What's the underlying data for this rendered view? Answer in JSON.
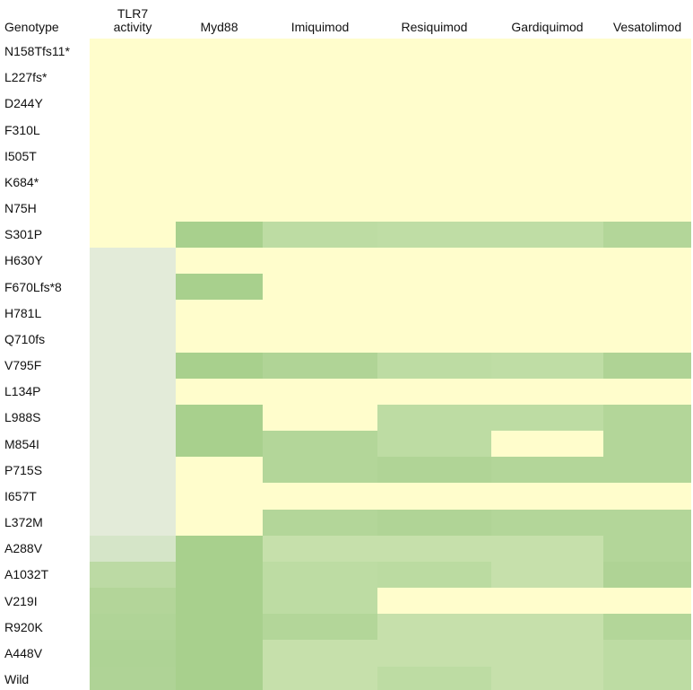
{
  "table": {
    "header": [
      "Genotype",
      "TLR7 activity",
      "Myd88",
      "Imiquimod",
      "Resiquimod",
      "Gardiquimod",
      "Vesatolimod"
    ],
    "rows": [
      {
        "label": "N158Tfs11*",
        "colors": [
          "#fffdcc",
          "#fffdcc",
          "#fffdcc",
          "#fffdcc",
          "#fffdcc",
          "#fffdcc"
        ]
      },
      {
        "label": "L227fs*",
        "colors": [
          "#fffdcc",
          "#fffdcc",
          "#fffdcc",
          "#fffdcc",
          "#fffdcc",
          "#fffdcc"
        ]
      },
      {
        "label": "D244Y",
        "colors": [
          "#fffdcc",
          "#fffdcc",
          "#fffdcc",
          "#fffdcc",
          "#fffdcc",
          "#fffdcc"
        ]
      },
      {
        "label": "F310L",
        "colors": [
          "#fffdcc",
          "#fffdcc",
          "#fffdcc",
          "#fffdcc",
          "#fffdcc",
          "#fffdcc"
        ]
      },
      {
        "label": "I505T",
        "colors": [
          "#fffdcc",
          "#fffdcc",
          "#fffdcc",
          "#fffdcc",
          "#fffdcc",
          "#fffdcc"
        ]
      },
      {
        "label": "K684*",
        "colors": [
          "#fffdcc",
          "#fffdcc",
          "#fffdcc",
          "#fffdcc",
          "#fffdcc",
          "#fffdcc"
        ]
      },
      {
        "label": "N75H",
        "colors": [
          "#fffdcc",
          "#fffdcc",
          "#fffdcc",
          "#fffdcc",
          "#fffdcc",
          "#fffdcc"
        ]
      },
      {
        "label": "S301P",
        "colors": [
          "#fffdcc",
          "#a8d08d",
          "#bddca3",
          "#bfdda5",
          "#bfdda5",
          "#b3d699"
        ]
      },
      {
        "label": "H630Y",
        "colors": [
          "#e3ebd9",
          "#fffdcc",
          "#fffdcc",
          "#fffdcc",
          "#fffdcc",
          "#fffdcc"
        ]
      },
      {
        "label": "F670Lfs*8",
        "colors": [
          "#e3ebd9",
          "#a8d08d",
          "#fffdcc",
          "#fffdcc",
          "#fffdcc",
          "#fffdcc"
        ]
      },
      {
        "label": "H781L",
        "colors": [
          "#e3ebd9",
          "#fffdcc",
          "#fffdcc",
          "#fffdcc",
          "#fffdcc",
          "#fffdcc"
        ]
      },
      {
        "label": "Q710fs",
        "colors": [
          "#e3ebd9",
          "#fffdcc",
          "#fffdcc",
          "#fffdcc",
          "#fffdcc",
          "#fffdcc"
        ]
      },
      {
        "label": "V795F",
        "colors": [
          "#e3ebd9",
          "#a8d08d",
          "#b0d496",
          "#bddca3",
          "#bfdda5",
          "#afd395"
        ]
      },
      {
        "label": "L134P",
        "colors": [
          "#e3ebd9",
          "#fffdcc",
          "#fffdcc",
          "#fffdcc",
          "#fffdcc",
          "#fffdcc"
        ]
      },
      {
        "label": "L988S",
        "colors": [
          "#e3ebd9",
          "#a8d08d",
          "#fffdcc",
          "#bddca3",
          "#bddca3",
          "#b3d699"
        ]
      },
      {
        "label": "M854I",
        "colors": [
          "#e3ebd9",
          "#a8d08d",
          "#b3d699",
          "#bddca3",
          "#fffdcc",
          "#b3d699"
        ]
      },
      {
        "label": "P715S",
        "colors": [
          "#e3ebd9",
          "#fffdcc",
          "#b3d699",
          "#b0d496",
          "#b3d699",
          "#b3d699"
        ]
      },
      {
        "label": "I657T",
        "colors": [
          "#e3ebd9",
          "#fffdcc",
          "#fffdcc",
          "#fffdcc",
          "#fffdcc",
          "#fffdcc"
        ]
      },
      {
        "label": "L372M",
        "colors": [
          "#e3ebd9",
          "#fffdcc",
          "#b3d699",
          "#b0d496",
          "#b3d699",
          "#b3d699"
        ]
      },
      {
        "label": "A288V",
        "colors": [
          "#d5e5c8",
          "#a8d08d",
          "#c6e0ab",
          "#c6e0ab",
          "#c6e0ab",
          "#b3d699"
        ]
      },
      {
        "label": "A1032T",
        "colors": [
          "#bcdaa4",
          "#a8d08d",
          "#bddca3",
          "#bbdba1",
          "#c6e0ab",
          "#afd395"
        ]
      },
      {
        "label": "V219I",
        "colors": [
          "#b3d599",
          "#a8d08d",
          "#bddca3",
          "#fffdcc",
          "#fffdcc",
          "#fffdcc"
        ]
      },
      {
        "label": "R920K",
        "colors": [
          "#b0d497",
          "#a8d08d",
          "#b3d699",
          "#c6e0ab",
          "#c6e0ab",
          "#b3d699"
        ]
      },
      {
        "label": "A448V",
        "colors": [
          "#aed395",
          "#a8d08d",
          "#c6e0ab",
          "#c6e0ab",
          "#c6e0ab",
          "#bddca3"
        ]
      },
      {
        "label": "Wild",
        "colors": [
          "#afd396",
          "#a8d08d",
          "#c6e0ab",
          "#bddca3",
          "#c6e0ab",
          "#bddca3"
        ]
      }
    ]
  }
}
